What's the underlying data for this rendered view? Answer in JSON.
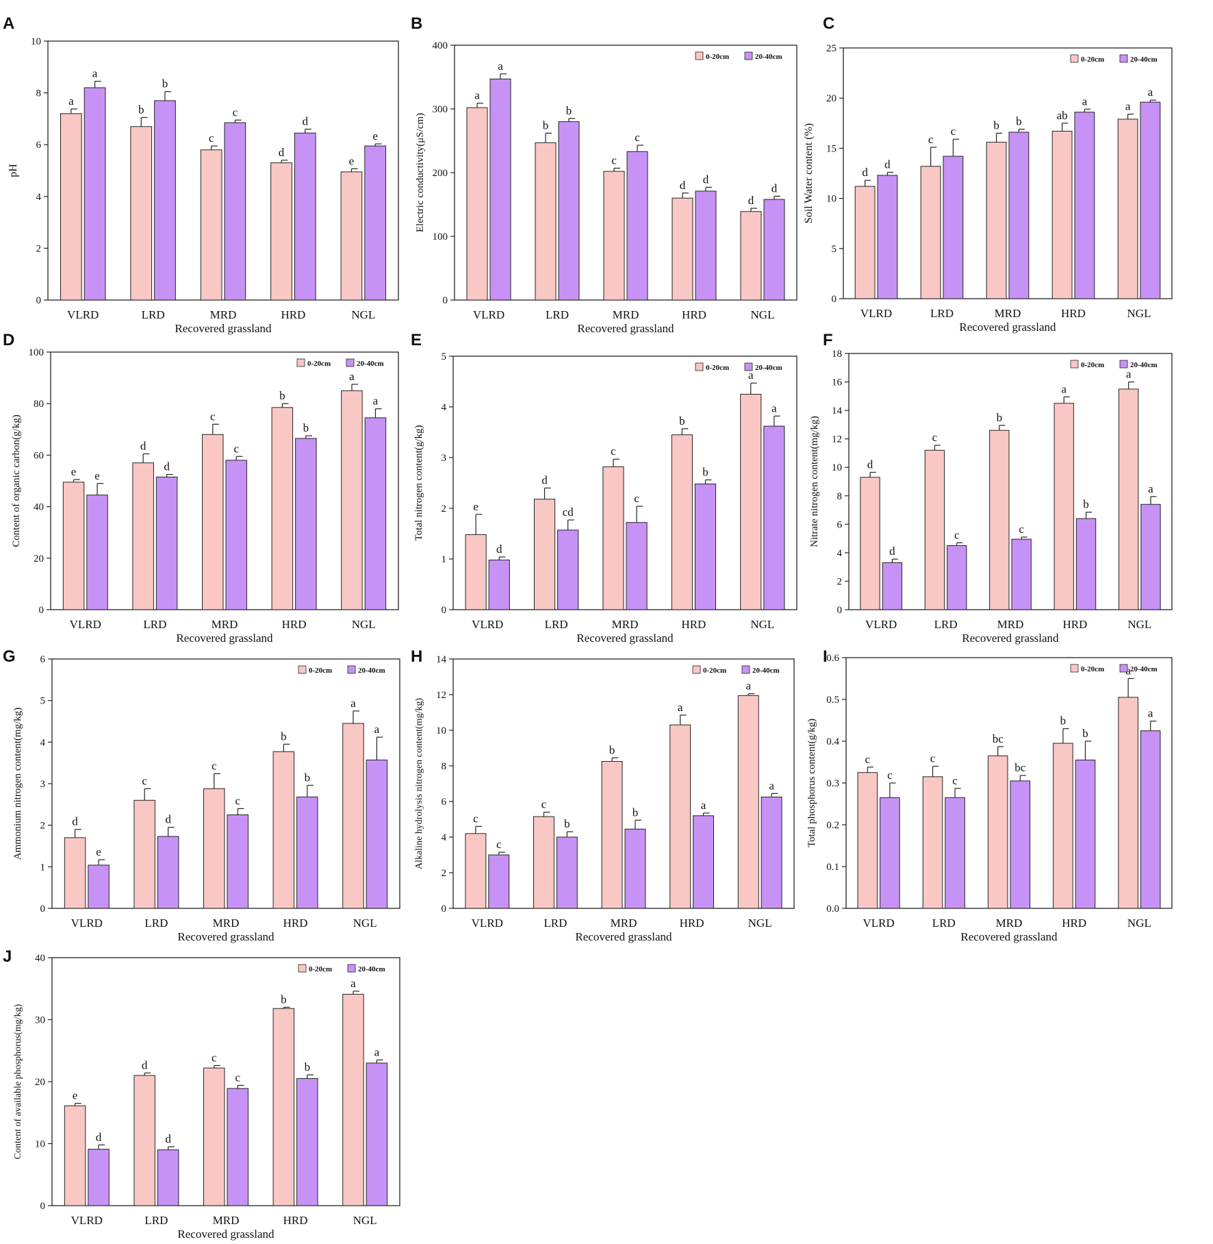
{
  "colors": {
    "shallow": "#F9C8C4",
    "deep": "#C792F5",
    "stroke": "#222222"
  },
  "chart_data": [
    {
      "panel": "A",
      "type": "bar",
      "title": "",
      "categories": [
        "VLRD",
        "LRD",
        "MRD",
        "HRD",
        "NGL"
      ],
      "xlabel": "Recovered grassland",
      "ylabel": "pH",
      "ylim": [
        0,
        10
      ],
      "yticks": [
        0,
        2,
        4,
        6,
        8,
        10
      ],
      "legend": false,
      "series": [
        {
          "name": "0-20cm",
          "values": [
            7.2,
            6.7,
            5.8,
            5.3,
            4.95
          ],
          "errors": [
            0.18,
            0.35,
            0.15,
            0.1,
            0.12
          ],
          "labels": [
            "a",
            "b",
            "c",
            "d",
            "e"
          ]
        },
        {
          "name": "20-40cm",
          "values": [
            8.2,
            7.7,
            6.85,
            6.45,
            5.95
          ],
          "errors": [
            0.25,
            0.35,
            0.1,
            0.15,
            0.08
          ],
          "labels": [
            "a",
            "b",
            "c",
            "d",
            "e"
          ]
        }
      ]
    },
    {
      "panel": "B",
      "type": "bar",
      "title": "",
      "categories": [
        "VLRD",
        "LRD",
        "MRD",
        "HRD",
        "NGL"
      ],
      "xlabel": "Recovered grassland",
      "ylabel": "Electric conductivity(μS/cm)",
      "ylim": [
        0,
        400
      ],
      "yticks": [
        0,
        100,
        200,
        300,
        400
      ],
      "legend": true,
      "legend_position": "top-right",
      "series": [
        {
          "name": "0-20cm",
          "values": [
            302,
            247,
            202,
            160,
            139
          ],
          "errors": [
            7,
            15,
            5,
            8,
            5
          ],
          "labels": [
            "a",
            "b",
            "c",
            "d",
            "d"
          ]
        },
        {
          "name": "20-40cm",
          "values": [
            347,
            280,
            233,
            171,
            158
          ],
          "errors": [
            8,
            5,
            10,
            6,
            5
          ],
          "labels": [
            "a",
            "b",
            "c",
            "d",
            "d"
          ]
        }
      ]
    },
    {
      "panel": "C",
      "type": "bar",
      "title": "",
      "categories": [
        "VLRD",
        "LRD",
        "MRD",
        "HRD",
        "NGL"
      ],
      "xlabel": "Recovered grassland",
      "ylabel": "Soil Water content (%)",
      "ylim": [
        0,
        25
      ],
      "yticks": [
        0,
        5,
        10,
        15,
        20,
        25
      ],
      "legend": true,
      "legend_position": "top-right",
      "series": [
        {
          "name": "0-20cm",
          "values": [
            11.2,
            13.2,
            15.6,
            16.7,
            17.9
          ],
          "errors": [
            0.6,
            1.9,
            0.9,
            0.8,
            0.5
          ],
          "labels": [
            "d",
            "c",
            "b",
            "ab",
            "a"
          ]
        },
        {
          "name": "20-40cm",
          "values": [
            12.3,
            14.2,
            16.6,
            18.6,
            19.6
          ],
          "errors": [
            0.3,
            1.7,
            0.3,
            0.3,
            0.2
          ],
          "labels": [
            "d",
            "c",
            "b",
            "a",
            "a"
          ]
        }
      ]
    },
    {
      "panel": "D",
      "type": "bar",
      "title": "",
      "categories": [
        "VLRD",
        "LRD",
        "MRD",
        "HRD",
        "NGL"
      ],
      "xlabel": "Recovered grassland",
      "ylabel": "Content of organic carbon(g/kg)",
      "ylim": [
        0,
        100
      ],
      "yticks": [
        0,
        20,
        40,
        60,
        80,
        100
      ],
      "legend": true,
      "legend_position": "top-right",
      "series": [
        {
          "name": "0-20cm",
          "values": [
            49.5,
            57,
            68,
            78.5,
            85
          ],
          "errors": [
            1,
            3.5,
            4,
            1.5,
            2.5
          ],
          "labels": [
            "e",
            "d",
            "c",
            "b",
            "a"
          ]
        },
        {
          "name": "20-40cm",
          "values": [
            44.5,
            51.5,
            58,
            66.5,
            74.5
          ],
          "errors": [
            4.5,
            1,
            1.5,
            1,
            3.5
          ],
          "labels": [
            "e",
            "d",
            "c",
            "b",
            "a"
          ]
        }
      ]
    },
    {
      "panel": "E",
      "type": "bar",
      "title": "",
      "categories": [
        "VLRD",
        "LRD",
        "MRD",
        "HRD",
        "NGL"
      ],
      "xlabel": "Recovered grassland",
      "ylabel": "Total nitrogen content(g/kg)",
      "ylim": [
        0,
        5
      ],
      "yticks": [
        0,
        1,
        2,
        3,
        4,
        5
      ],
      "legend": true,
      "legend_position": "top-right",
      "series": [
        {
          "name": "0-20cm",
          "values": [
            1.48,
            2.18,
            2.82,
            3.45,
            4.25
          ],
          "errors": [
            0.4,
            0.22,
            0.15,
            0.12,
            0.22
          ],
          "labels": [
            "e",
            "d",
            "c",
            "b",
            "a"
          ]
        },
        {
          "name": "20-40cm",
          "values": [
            0.98,
            1.57,
            1.72,
            2.48,
            3.62
          ],
          "errors": [
            0.06,
            0.2,
            0.32,
            0.08,
            0.2
          ],
          "labels": [
            "d",
            "cd",
            "c",
            "b",
            "a"
          ]
        }
      ]
    },
    {
      "panel": "F",
      "type": "bar",
      "title": "",
      "categories": [
        "VLRD",
        "LRD",
        "MRD",
        "HRD",
        "NGL"
      ],
      "xlabel": "Recovered grassland",
      "ylabel": "Nitrate nitrogen content(mg/kg)",
      "ylim": [
        0,
        18
      ],
      "yticks": [
        0,
        2,
        4,
        6,
        8,
        10,
        12,
        14,
        16,
        18
      ],
      "legend": true,
      "legend_position": "top-right",
      "series": [
        {
          "name": "0-20cm",
          "values": [
            9.3,
            11.2,
            12.6,
            14.5,
            15.5
          ],
          "errors": [
            0.35,
            0.35,
            0.35,
            0.45,
            0.5
          ],
          "labels": [
            "d",
            "c",
            "b",
            "a",
            "a"
          ]
        },
        {
          "name": "20-40cm",
          "values": [
            3.3,
            4.5,
            4.95,
            6.4,
            7.4
          ],
          "errors": [
            0.25,
            0.2,
            0.15,
            0.45,
            0.55
          ],
          "labels": [
            "d",
            "c",
            "c",
            "b",
            "a"
          ]
        }
      ]
    },
    {
      "panel": "G",
      "type": "bar",
      "title": "",
      "categories": [
        "VLRD",
        "LRD",
        "MRD",
        "HRD",
        "NGL"
      ],
      "xlabel": "Recovered grassland",
      "ylabel": "Ammonium nitrogen content(mg/kg)",
      "ylim": [
        0,
        6
      ],
      "yticks": [
        0,
        1,
        2,
        3,
        4,
        5,
        6
      ],
      "legend": true,
      "legend_position": "top-right",
      "series": [
        {
          "name": "0-20cm",
          "values": [
            1.7,
            2.6,
            2.88,
            3.77,
            4.45
          ],
          "errors": [
            0.2,
            0.28,
            0.36,
            0.18,
            0.3
          ],
          "labels": [
            "d",
            "c",
            "c",
            "b",
            "a"
          ]
        },
        {
          "name": "20-40cm",
          "values": [
            1.04,
            1.73,
            2.25,
            2.68,
            3.57
          ],
          "errors": [
            0.13,
            0.22,
            0.15,
            0.28,
            0.55
          ],
          "labels": [
            "e",
            "d",
            "c",
            "b",
            "a"
          ]
        }
      ]
    },
    {
      "panel": "H",
      "type": "bar",
      "title": "",
      "categories": [
        "VLRD",
        "LRD",
        "MRD",
        "HRD",
        "NGL"
      ],
      "xlabel": "Recovered grassland",
      "ylabel": "Alkaline hydrolysis nitrogen content(mg/kg)",
      "ylim": [
        0,
        14
      ],
      "yticks": [
        0,
        2,
        4,
        6,
        8,
        10,
        12,
        14
      ],
      "legend": true,
      "legend_position": "top-right",
      "series": [
        {
          "name": "0-20cm",
          "values": [
            4.2,
            5.15,
            8.25,
            10.3,
            11.95
          ],
          "errors": [
            0.4,
            0.25,
            0.2,
            0.55,
            0.1
          ],
          "labels": [
            "c",
            "c",
            "b",
            "a",
            "a"
          ]
        },
        {
          "name": "20-40cm",
          "values": [
            3.0,
            4.0,
            4.45,
            5.2,
            6.25
          ],
          "errors": [
            0.15,
            0.3,
            0.5,
            0.15,
            0.2
          ],
          "labels": [
            "c",
            "b",
            "b",
            "a",
            "a"
          ]
        }
      ]
    },
    {
      "panel": "I",
      "type": "bar",
      "title": "",
      "categories": [
        "VLRD",
        "LRD",
        "MRD",
        "HRD",
        "NGL"
      ],
      "xlabel": "Recovered grassland",
      "ylabel": "Total phosphorus content(g/kg)",
      "ylim": [
        0,
        0.6
      ],
      "yticks": [
        0.0,
        0.1,
        0.2,
        0.3,
        0.4,
        0.5,
        0.6
      ],
      "legend": true,
      "legend_position": "top-right",
      "series": [
        {
          "name": "0-20cm",
          "values": [
            0.325,
            0.315,
            0.365,
            0.395,
            0.505
          ],
          "errors": [
            0.013,
            0.025,
            0.022,
            0.035,
            0.045
          ],
          "labels": [
            "c",
            "c",
            "bc",
            "b",
            "a"
          ]
        },
        {
          "name": "20-40cm",
          "values": [
            0.265,
            0.265,
            0.305,
            0.355,
            0.425
          ],
          "errors": [
            0.035,
            0.022,
            0.013,
            0.045,
            0.023
          ],
          "labels": [
            "c",
            "c",
            "bc",
            "b",
            "a"
          ]
        }
      ]
    },
    {
      "panel": "J",
      "type": "bar",
      "title": "",
      "categories": [
        "VLRD",
        "LRD",
        "MRD",
        "HRD",
        "NGL"
      ],
      "xlabel": "Recovered grassland",
      "ylabel": "Content of available phosphorus(mg/kg)",
      "ylim": [
        0,
        40
      ],
      "yticks": [
        0,
        10,
        20,
        30,
        40
      ],
      "legend": true,
      "legend_position": "top-right",
      "series": [
        {
          "name": "0-20cm",
          "values": [
            16.1,
            21.0,
            22.2,
            31.8,
            34.1
          ],
          "errors": [
            0.4,
            0.4,
            0.4,
            0.2,
            0.5
          ],
          "labels": [
            "e",
            "d",
            "c",
            "b",
            "a"
          ]
        },
        {
          "name": "20-40cm",
          "values": [
            9.1,
            9.0,
            18.9,
            20.5,
            23.0
          ],
          "errors": [
            0.7,
            0.5,
            0.5,
            0.6,
            0.5
          ],
          "labels": [
            "d",
            "d",
            "c",
            "b",
            "a"
          ]
        }
      ]
    }
  ]
}
